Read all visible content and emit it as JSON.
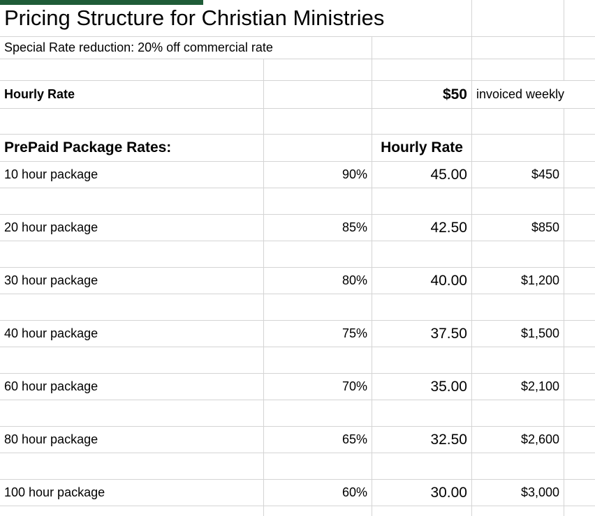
{
  "title": "Pricing Structure for Christian Ministries",
  "subtitle": "Special Rate reduction: 20% off commercial rate",
  "hourly_rate": {
    "label": "Hourly Rate",
    "value": "$50",
    "note": "invoiced weekly"
  },
  "packages": {
    "section_label": "PrePaid Package Rates:",
    "rate_column_header": "Hourly Rate",
    "rows": [
      {
        "label": "10 hour package",
        "percent": "90%",
        "rate": "45.00",
        "price": "$450"
      },
      {
        "label": "20 hour package",
        "percent": "85%",
        "rate": "42.50",
        "price": "$850"
      },
      {
        "label": "30 hour package",
        "percent": "80%",
        "rate": "40.00",
        "price": "$1,200"
      },
      {
        "label": "40 hour package",
        "percent": "75%",
        "rate": "37.50",
        "price": "$1,500"
      },
      {
        "label": "60 hour package",
        "percent": "70%",
        "rate": "35.00",
        "price": "$2,100"
      },
      {
        "label": "80 hour package",
        "percent": "65%",
        "rate": "32.50",
        "price": "$2,600"
      },
      {
        "label": "100 hour package",
        "percent": "60%",
        "rate": "30.00",
        "price": "$3,000"
      }
    ]
  },
  "colors": {
    "accent_bar": "#1f5c38",
    "gridline": "#d4d4d4"
  }
}
